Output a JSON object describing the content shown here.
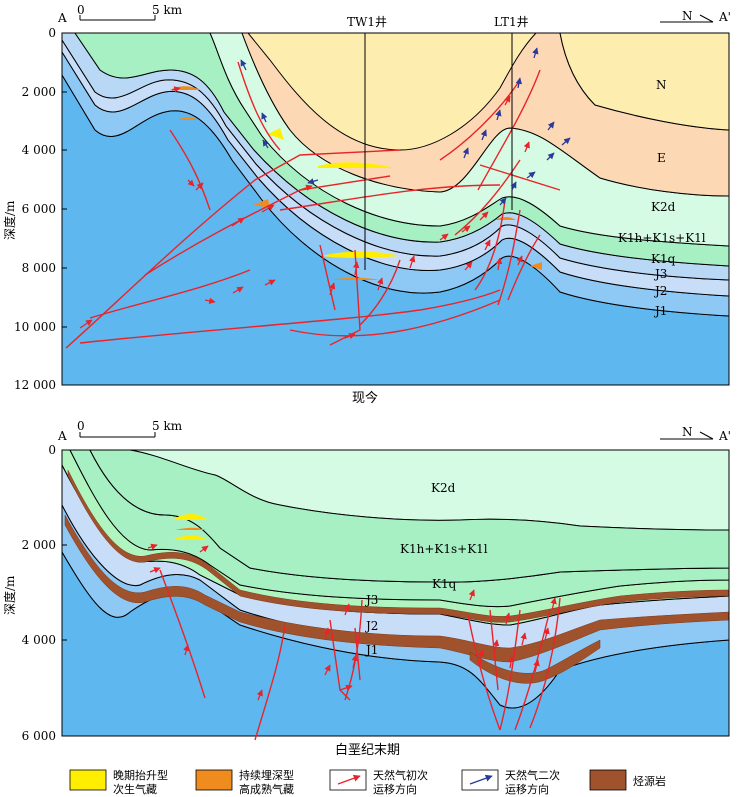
{
  "top_panel": {
    "end_left": "A",
    "end_right": "A'",
    "north_label": "N",
    "scale_zero": "0",
    "scale_end": "5 km",
    "depth_label": "深度/m",
    "depth_ticks": [
      "0",
      "2 000",
      "4 000",
      "6 000",
      "8 000",
      "10 000",
      "12 000"
    ],
    "caption": "现今",
    "wells": [
      "TW1井",
      "LT1井"
    ],
    "layers": {
      "n": "N",
      "e": "E",
      "k2d": "K2d",
      "k1": "K1h+K1s+K1l",
      "k1q": "K1q",
      "j3": "J3",
      "j2": "J2",
      "j1": "J1"
    }
  },
  "bottom_panel": {
    "end_left": "A",
    "end_right": "A'",
    "north_label": "N",
    "scale_zero": "0",
    "scale_end": "5 km",
    "depth_label": "深度/m",
    "depth_ticks": [
      "0",
      "2 000",
      "4 000",
      "6 000"
    ],
    "caption": "白垩纪末期",
    "layers": {
      "k2d": "K2d",
      "k1": "K1h+K1s+K1l",
      "k1q": "K1q",
      "j3": "J3",
      "j2": "J2",
      "j1": "J1"
    }
  },
  "legend": [
    {
      "label": "晚期抬升型\n次生气藏",
      "color": "#ffee00"
    },
    {
      "label": "持续埋深型\n高成熟气藏",
      "color": "#f08c1e"
    },
    {
      "label": "天然气初次\n运移方向",
      "color": "#e8242a"
    },
    {
      "label": "天然气二次\n运移方向",
      "color": "#2a3a9a"
    },
    {
      "label": "烃源岩",
      "color": "#a0522d"
    }
  ]
}
